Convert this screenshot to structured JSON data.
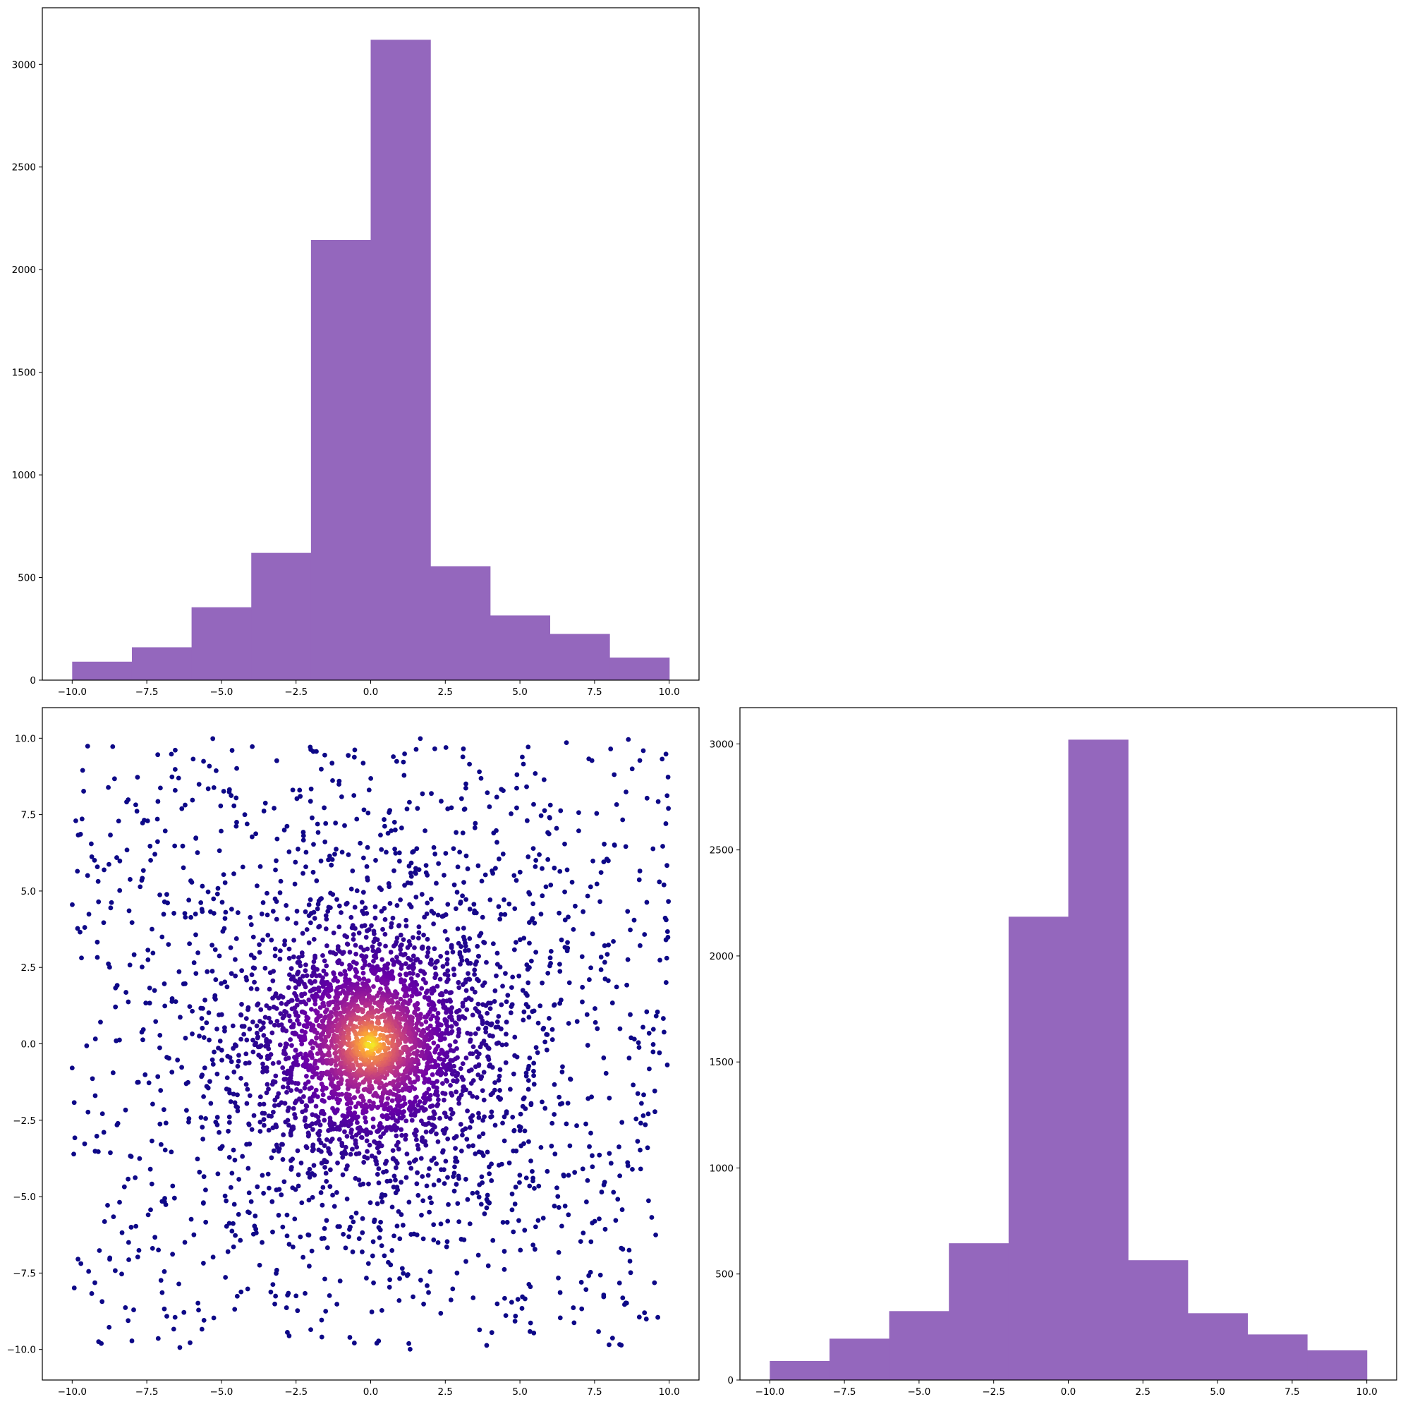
{
  "chart_data": [
    {
      "id": "top-left",
      "type": "bar",
      "subtype": "histogram",
      "bin_edges": [
        -10,
        -8,
        -6,
        -4,
        -2,
        0,
        2,
        4,
        6,
        8,
        10
      ],
      "values": [
        90,
        160,
        355,
        620,
        2145,
        3120,
        555,
        315,
        225,
        110
      ],
      "color": "#9467bd",
      "xlim": [
        -11,
        11
      ],
      "ylim": [
        0,
        3276
      ],
      "xticks": [
        -10.0,
        -7.5,
        -5.0,
        -2.5,
        0.0,
        2.5,
        5.0,
        7.5,
        10.0
      ],
      "xtick_labels": [
        "−10.0",
        "−7.5",
        "−5.0",
        "−2.5",
        "0.0",
        "2.5",
        "5.0",
        "7.5",
        "10.0"
      ],
      "yticks": [
        0,
        500,
        1000,
        1500,
        2000,
        2500,
        3000
      ],
      "ytick_labels": [
        "0",
        "500",
        "1000",
        "1500",
        "2000",
        "2500",
        "3000"
      ],
      "grid": false
    },
    {
      "id": "bottom-left",
      "type": "scatter",
      "n_points": 4000,
      "distribution": "dense core near (0, 0) with a uniform background over x and y in [-10, 10]",
      "colormap": "plasma",
      "color_encodes": "point density, highest at the center",
      "colormap_stops": [
        "#0d0887",
        "#6a00a8",
        "#b12a90",
        "#e16462",
        "#fca636",
        "#f0f921"
      ],
      "xlim": [
        -11,
        11
      ],
      "ylim": [
        -11,
        11
      ],
      "xticks": [
        -10.0,
        -7.5,
        -5.0,
        -2.5,
        0.0,
        2.5,
        5.0,
        7.5,
        10.0
      ],
      "xtick_labels": [
        "−10.0",
        "−7.5",
        "−5.0",
        "−2.5",
        "0.0",
        "2.5",
        "5.0",
        "7.5",
        "10.0"
      ],
      "yticks": [
        -10.0,
        -7.5,
        -5.0,
        -2.5,
        0.0,
        2.5,
        5.0,
        7.5,
        10.0
      ],
      "ytick_labels": [
        "−10.0",
        "−7.5",
        "−5.0",
        "−2.5",
        "0.0",
        "2.5",
        "5.0",
        "7.5",
        "10.0"
      ],
      "grid": false
    },
    {
      "id": "bottom-right",
      "type": "bar",
      "subtype": "histogram",
      "bin_edges": [
        -10,
        -8,
        -6,
        -4,
        -2,
        0,
        2,
        4,
        6,
        8,
        10
      ],
      "values": [
        90,
        195,
        325,
        645,
        2185,
        3020,
        565,
        315,
        215,
        140
      ],
      "color": "#9467bd",
      "xlim": [
        -11,
        11
      ],
      "ylim": [
        0,
        3171
      ],
      "xticks": [
        -10.0,
        -7.5,
        -5.0,
        -2.5,
        0.0,
        2.5,
        5.0,
        7.5,
        10.0
      ],
      "xtick_labels": [
        "−10.0",
        "−7.5",
        "−5.0",
        "−2.5",
        "0.0",
        "2.5",
        "5.0",
        "7.5",
        "10.0"
      ],
      "yticks": [
        0,
        500,
        1000,
        1500,
        2000,
        2500,
        3000
      ],
      "ytick_labels": [
        "0",
        "500",
        "1000",
        "1500",
        "2000",
        "2500",
        "3000"
      ],
      "grid": false
    }
  ]
}
